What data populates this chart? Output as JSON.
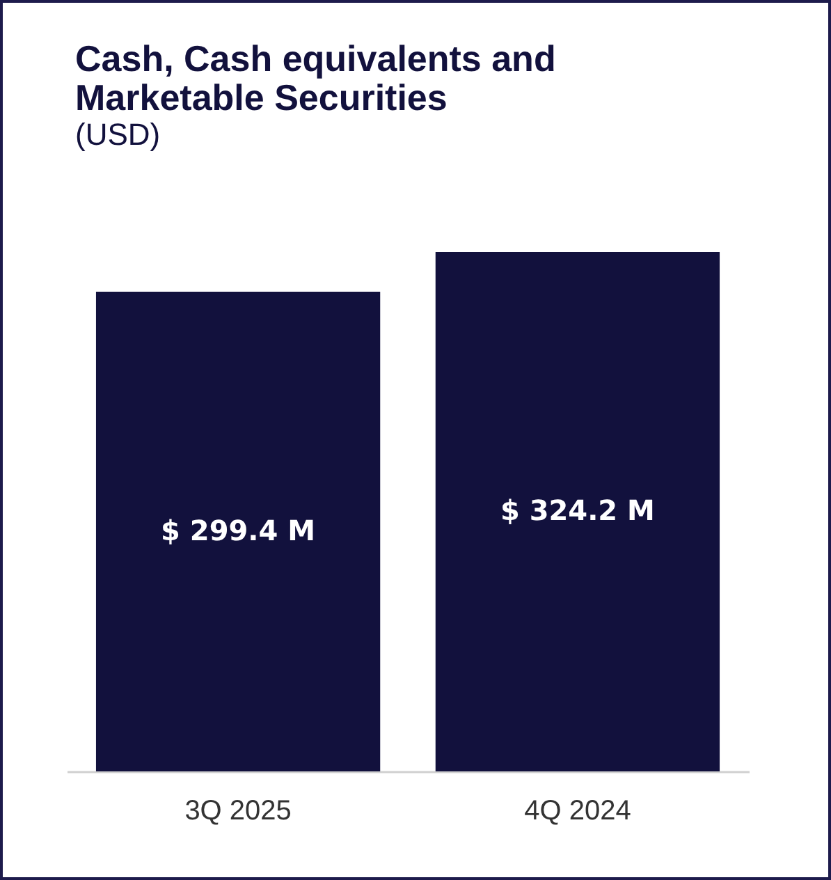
{
  "chart_data": {
    "type": "bar",
    "title": "Cash, Cash equivalents and Marketable Securities",
    "subtitle": "(USD)",
    "categories": [
      "3Q 2025",
      "4Q 2024"
    ],
    "values": [
      299.4,
      324.2
    ],
    "color": "#12113d",
    "value_labels": [
      "$ 299.4 M",
      "$ 324.2 M"
    ]
  }
}
